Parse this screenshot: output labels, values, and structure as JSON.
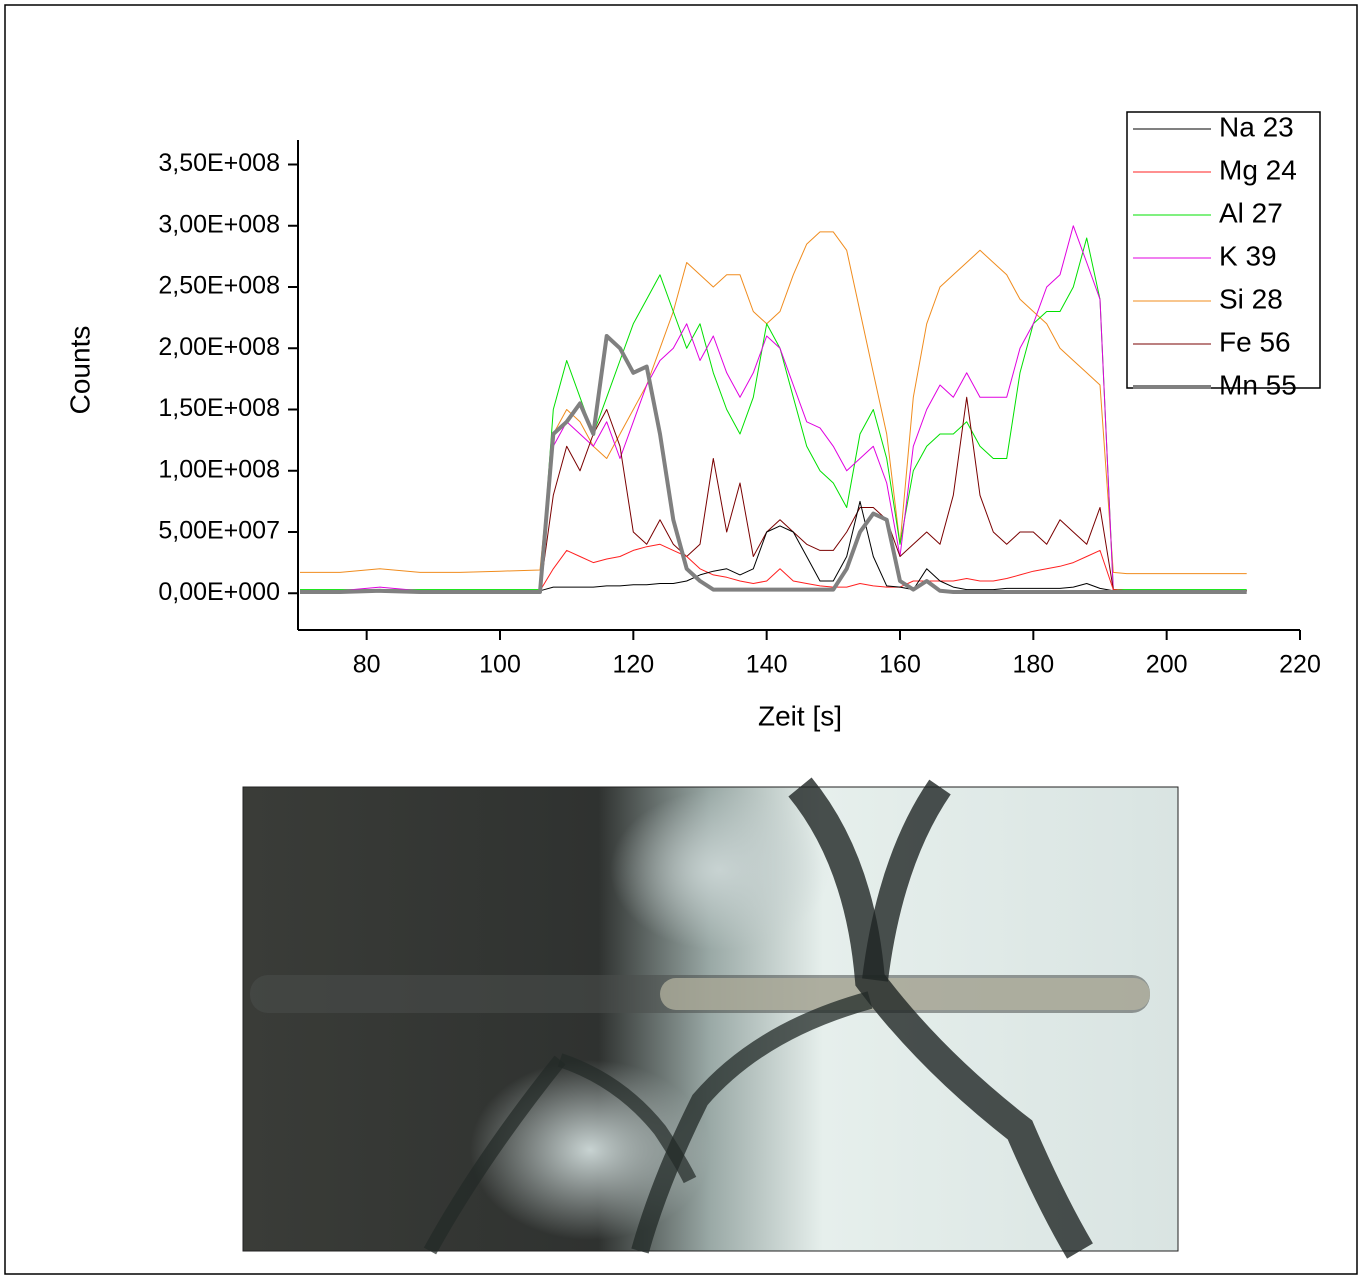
{
  "chart_data": {
    "type": "line",
    "x_label": "Zeit [s]",
    "y_label": "Counts",
    "xlim": [
      70,
      220
    ],
    "ylim": [
      -30000000,
      370000000
    ],
    "xticks": [
      80,
      100,
      120,
      140,
      160,
      180,
      200,
      220
    ],
    "yticks": [
      {
        "value": 0,
        "label": "0,00E+000"
      },
      {
        "value": 50000000,
        "label": "5,00E+007"
      },
      {
        "value": 100000000,
        "label": "1,00E+008"
      },
      {
        "value": 150000000,
        "label": "1,50E+008"
      },
      {
        "value": 200000000,
        "label": "2,00E+008"
      },
      {
        "value": 250000000,
        "label": "2,50E+008"
      },
      {
        "value": 300000000,
        "label": "3,00E+008"
      },
      {
        "value": 350000000,
        "label": "3,50E+008"
      }
    ],
    "legend": "top-right",
    "x": [
      70,
      76,
      82,
      88,
      94,
      100,
      106,
      108,
      110,
      112,
      114,
      116,
      118,
      120,
      122,
      124,
      126,
      128,
      130,
      132,
      134,
      136,
      138,
      140,
      142,
      144,
      146,
      148,
      150,
      152,
      154,
      156,
      158,
      160,
      162,
      164,
      166,
      168,
      170,
      172,
      174,
      176,
      178,
      180,
      182,
      184,
      186,
      188,
      190,
      192,
      194,
      200,
      206,
      212
    ],
    "series": [
      {
        "name": "Na 23",
        "color": "#000000",
        "width": 1,
        "values": [
          2000000.0,
          2000000.0,
          2000000.0,
          2000000.0,
          2000000.0,
          2000000.0,
          2000000.0,
          5000000.0,
          5000000.0,
          5000000.0,
          5000000.0,
          6000000.0,
          6000000.0,
          7000000.0,
          7000000.0,
          8000000.0,
          8000000.0,
          10000000.0,
          15000000.0,
          18000000.0,
          20000000.0,
          15000000.0,
          20000000.0,
          50000000.0,
          55000000.0,
          50000000.0,
          30000000.0,
          10000000.0,
          10000000.0,
          30000000.0,
          75000000.0,
          30000000.0,
          6000000.0,
          5000000.0,
          3000000.0,
          20000000.0,
          10000000.0,
          5000000.0,
          3000000.0,
          3000000.0,
          3000000.0,
          4000000.0,
          4000000.0,
          4000000.0,
          4000000.0,
          4000000.0,
          5000000.0,
          8000000.0,
          4000000.0,
          2000000.0,
          2000000.0,
          2000000.0,
          2000000.0,
          2000000.0
        ]
      },
      {
        "name": "Mg 24",
        "color": "#ff2020",
        "width": 1,
        "values": [
          2000000.0,
          2000000.0,
          2000000.0,
          2000000.0,
          2000000.0,
          2000000.0,
          2000000.0,
          20000000.0,
          35000000.0,
          30000000.0,
          25000000.0,
          28000000.0,
          30000000.0,
          35000000.0,
          38000000.0,
          40000000.0,
          35000000.0,
          30000000.0,
          20000000.0,
          15000000.0,
          13000000.0,
          10000000.0,
          8000000.0,
          10000000.0,
          20000000.0,
          10000000.0,
          8000000.0,
          6000000.0,
          5000000.0,
          5000000.0,
          8000000.0,
          6000000.0,
          5000000.0,
          5000000.0,
          10000000.0,
          10000000.0,
          10000000.0,
          10000000.0,
          12000000.0,
          10000000.0,
          10000000.0,
          12000000.0,
          15000000.0,
          18000000.0,
          20000000.0,
          22000000.0,
          25000000.0,
          30000000.0,
          35000000.0,
          3000000.0,
          2000000.0,
          2000000.0,
          2000000.0,
          2000000.0
        ]
      },
      {
        "name": "Al 27",
        "color": "#00e000",
        "width": 1,
        "values": [
          3000000.0,
          3000000.0,
          3000000.0,
          3000000.0,
          3000000.0,
          3000000.0,
          3000000.0,
          150000000.0,
          190000000.0,
          160000000.0,
          130000000.0,
          160000000.0,
          190000000.0,
          220000000.0,
          240000000.0,
          260000000.0,
          230000000.0,
          200000000.0,
          220000000.0,
          180000000.0,
          150000000.0,
          130000000.0,
          160000000.0,
          220000000.0,
          200000000.0,
          160000000.0,
          120000000.0,
          100000000.0,
          90000000.0,
          70000000.0,
          130000000.0,
          150000000.0,
          110000000.0,
          40000000.0,
          100000000.0,
          120000000.0,
          130000000.0,
          130000000.0,
          140000000.0,
          120000000.0,
          110000000.0,
          110000000.0,
          180000000.0,
          220000000.0,
          230000000.0,
          230000000.0,
          250000000.0,
          290000000.0,
          240000000.0,
          3000000.0,
          3000000.0,
          3000000.0,
          3000000.0,
          3000000.0
        ]
      },
      {
        "name": "K 39",
        "color": "#e000e0",
        "width": 1,
        "values": [
          2000000.0,
          2000000.0,
          5000000.0,
          2000000.0,
          2000000.0,
          2000000.0,
          2000000.0,
          120000000.0,
          140000000.0,
          130000000.0,
          120000000.0,
          140000000.0,
          110000000.0,
          140000000.0,
          170000000.0,
          190000000.0,
          200000000.0,
          220000000.0,
          190000000.0,
          210000000.0,
          180000000.0,
          160000000.0,
          180000000.0,
          210000000.0,
          200000000.0,
          170000000.0,
          140000000.0,
          135000000.0,
          120000000.0,
          100000000.0,
          110000000.0,
          120000000.0,
          90000000.0,
          30000000.0,
          120000000.0,
          150000000.0,
          170000000.0,
          160000000.0,
          180000000.0,
          160000000.0,
          160000000.0,
          160000000.0,
          200000000.0,
          220000000.0,
          250000000.0,
          260000000.0,
          300000000.0,
          270000000.0,
          240000000.0,
          2000000.0,
          2000000.0,
          2000000.0,
          2000000.0,
          2000000.0
        ]
      },
      {
        "name": "Si 28",
        "color": "#f08c1e",
        "width": 1,
        "values": [
          17000000.0,
          17000000.0,
          20000000.0,
          17000000.0,
          17000000.0,
          18000000.0,
          19000000.0,
          130000000.0,
          150000000.0,
          140000000.0,
          120000000.0,
          110000000.0,
          130000000.0,
          150000000.0,
          170000000.0,
          200000000.0,
          230000000.0,
          270000000.0,
          260000000.0,
          250000000.0,
          260000000.0,
          260000000.0,
          230000000.0,
          220000000.0,
          230000000.0,
          260000000.0,
          285000000.0,
          295000000.0,
          295000000.0,
          280000000.0,
          230000000.0,
          180000000.0,
          130000000.0,
          40000000.0,
          160000000.0,
          220000000.0,
          250000000.0,
          260000000.0,
          270000000.0,
          280000000.0,
          270000000.0,
          260000000.0,
          240000000.0,
          230000000.0,
          220000000.0,
          200000000.0,
          190000000.0,
          180000000.0,
          170000000.0,
          17000000.0,
          16000000.0,
          16000000.0,
          16000000.0,
          16000000.0
        ]
      },
      {
        "name": "Fe 56",
        "color": "#7a0000",
        "width": 1,
        "values": [
          2000000.0,
          2000000.0,
          2000000.0,
          2000000.0,
          2000000.0,
          2000000.0,
          2000000.0,
          80000000.0,
          120000000.0,
          100000000.0,
          130000000.0,
          150000000.0,
          120000000.0,
          50000000.0,
          40000000.0,
          60000000.0,
          40000000.0,
          30000000.0,
          40000000.0,
          110000000.0,
          50000000.0,
          90000000.0,
          30000000.0,
          50000000.0,
          60000000.0,
          50000000.0,
          40000000.0,
          35000000.0,
          35000000.0,
          50000000.0,
          70000000.0,
          70000000.0,
          60000000.0,
          30000000.0,
          40000000.0,
          50000000.0,
          40000000.0,
          80000000.0,
          160000000.0,
          80000000.0,
          50000000.0,
          40000000.0,
          50000000.0,
          50000000.0,
          40000000.0,
          60000000.0,
          50000000.0,
          40000000.0,
          70000000.0,
          3000000.0,
          2000000.0,
          2000000.0,
          2000000.0,
          2000000.0
        ]
      },
      {
        "name": "Mn 55",
        "color": "#808080",
        "width": 4,
        "values": [
          1000000.0,
          1000000.0,
          2000000.0,
          1000000.0,
          1000000.0,
          1000000.0,
          1000000.0,
          130000000.0,
          140000000.0,
          155000000.0,
          130000000.0,
          210000000.0,
          200000000.0,
          180000000.0,
          185000000.0,
          130000000.0,
          60000000.0,
          20000000.0,
          10000000.0,
          3000000.0,
          3000000.0,
          3000000.0,
          3000000.0,
          3000000.0,
          3000000.0,
          3000000.0,
          3000000.0,
          3000000.0,
          3000000.0,
          20000000.0,
          50000000.0,
          65000000.0,
          60000000.0,
          10000000.0,
          3000000.0,
          10000000.0,
          2000000.0,
          1000000.0,
          1000000.0,
          1000000.0,
          1000000.0,
          1000000.0,
          1000000.0,
          1000000.0,
          1000000.0,
          1000000.0,
          1000000.0,
          1000000.0,
          1000000.0,
          1000000.0,
          1000000.0,
          1000000.0,
          1000000.0,
          1000000.0
        ]
      }
    ]
  }
}
